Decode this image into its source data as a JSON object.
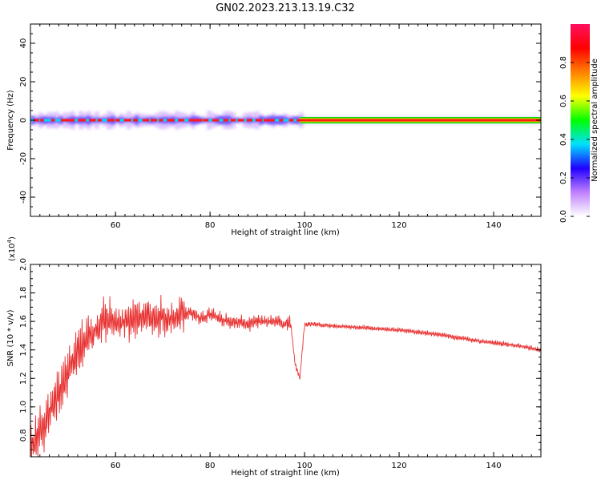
{
  "title": "GN02.2023.213.13.19.C32",
  "colorbar": {
    "label": "Normalized spectral amplitude",
    "ticks": [
      "0.0",
      "0.2",
      "0.4",
      "0.6",
      "0.8"
    ],
    "colors": [
      "#ffffff",
      "#c080ff",
      "#2000ff",
      "#00e0ff",
      "#00ff00",
      "#ffff00",
      "#ff8000",
      "#ff0000",
      "#ff1060"
    ]
  },
  "chart_data": [
    {
      "type": "heatmap",
      "xlabel": "Height of straight line (km)",
      "ylabel": "Frequency (Hz)",
      "xlim": [
        42,
        150
      ],
      "ylim": [
        -50,
        50
      ],
      "xticks": [
        "60",
        "80",
        "100",
        "120",
        "140"
      ],
      "yticks": [
        "40",
        "20",
        "0",
        "-20",
        "-40"
      ],
      "band": {
        "frequency_hz": 0,
        "noisy_range_km": [
          42,
          99
        ],
        "stable_range_km": [
          99,
          150
        ],
        "peak_amplitude": 0.95
      }
    },
    {
      "type": "line",
      "xlabel": "Height of straight line (km)",
      "ylabel": "SNR (10 * v/v)",
      "scale_note": "(x10",
      "scale_exp": "4",
      "xlim": [
        42,
        150
      ],
      "ylim": [
        0.65,
        2.0
      ],
      "xticks": [
        "60",
        "80",
        "100",
        "120",
        "140"
      ],
      "yticks": [
        "0.8",
        "1.0",
        "1.2",
        "1.4",
        "1.6",
        "1.8",
        "2.0"
      ],
      "color": "#e83030",
      "series": [
        {
          "x": [
            42,
            44,
            46,
            48,
            50,
            52,
            54,
            56,
            58,
            60,
            62,
            64,
            66,
            68,
            70,
            72,
            74,
            76,
            78,
            80,
            82,
            84,
            86,
            88,
            90,
            92,
            94,
            96,
            97,
            98,
            99,
            100,
            102,
            105,
            110,
            115,
            120,
            125,
            130,
            135,
            140,
            145,
            150
          ],
          "values": [
            0.72,
            0.82,
            0.95,
            1.1,
            1.25,
            1.4,
            1.48,
            1.55,
            1.62,
            1.6,
            1.6,
            1.62,
            1.63,
            1.63,
            1.63,
            1.62,
            1.65,
            1.66,
            1.62,
            1.65,
            1.62,
            1.6,
            1.6,
            1.58,
            1.6,
            1.6,
            1.6,
            1.58,
            1.6,
            1.3,
            1.2,
            1.58,
            1.58,
            1.57,
            1.56,
            1.55,
            1.54,
            1.52,
            1.5,
            1.47,
            1.45,
            1.43,
            1.4
          ]
        }
      ]
    }
  ]
}
